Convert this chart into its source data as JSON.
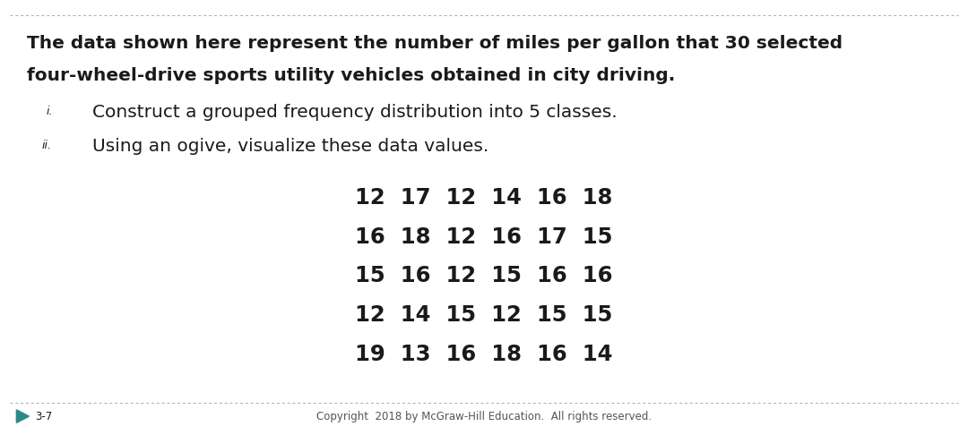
{
  "slide_bg": "#ffffff",
  "border_color": "#aaaaaa",
  "title_line1": "The data shown here represent the number of miles per gallon that 30 selected",
  "title_line2": "four-wheel-drive sports utility vehicles obtained in city driving.",
  "roman_i": "i.",
  "roman_ii": "ii.",
  "item_i": "Construct a grouped frequency distribution into 5 classes.",
  "item_ii": "Using an ogive, visualize these data values.",
  "data_rows": [
    "12  17  12  14  16  18",
    "16  18  12  16  17  15",
    "15  16  12  15  16  16",
    "12  14  15  12  15  15",
    "19  13  16  18  16  14"
  ],
  "slide_number": "3-7",
  "copyright": "Copyright  2018 by McGraw-Hill Education.  All rights reserved.",
  "title_fontsize": 14.5,
  "body_fontsize": 14.5,
  "data_fontsize": 17.5,
  "small_fontsize": 8.5,
  "roman_fontsize": 9,
  "text_color": "#1a1a1a",
  "gray_color": "#555555",
  "teal_color": "#2a8a8a",
  "border_lw": 0.7
}
